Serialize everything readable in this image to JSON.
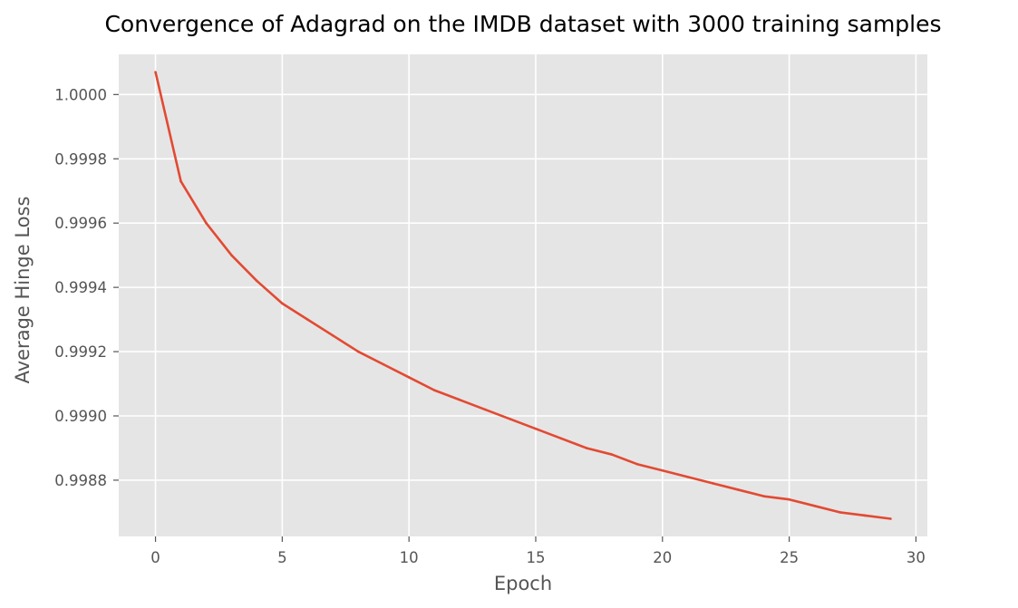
{
  "chart_data": {
    "type": "line",
    "title": "Convergence of Adagrad on the IMDB dataset with 3000 training samples",
    "xlabel": "Epoch",
    "ylabel": "Average Hinge Loss",
    "xlim": [
      -1.45,
      30.45
    ],
    "ylim": [
      0.998625,
      1.000125
    ],
    "grid": true,
    "style": "ggplot",
    "colors": {
      "plot_background": "#E5E5E5",
      "grid": "#FFFFFF",
      "tick_mark": "#555555",
      "series": "#E24A33"
    },
    "x_ticks": [
      {
        "value": 0,
        "label": "0"
      },
      {
        "value": 5,
        "label": "5"
      },
      {
        "value": 10,
        "label": "10"
      },
      {
        "value": 15,
        "label": "15"
      },
      {
        "value": 20,
        "label": "20"
      },
      {
        "value": 25,
        "label": "25"
      },
      {
        "value": 30,
        "label": "30"
      }
    ],
    "y_ticks": [
      {
        "value": 0.9988,
        "label": "0.9988"
      },
      {
        "value": 0.999,
        "label": "0.9990"
      },
      {
        "value": 0.9992,
        "label": "0.9992"
      },
      {
        "value": 0.9994,
        "label": "0.9994"
      },
      {
        "value": 0.9996,
        "label": "0.9996"
      },
      {
        "value": 0.9998,
        "label": "0.9998"
      },
      {
        "value": 1.0,
        "label": "1.0000"
      }
    ],
    "series": [
      {
        "x": [
          0,
          1,
          2,
          3,
          4,
          5,
          6,
          7,
          8,
          9,
          10,
          11,
          12,
          13,
          14,
          15,
          16,
          17,
          18,
          19,
          20,
          21,
          22,
          23,
          24,
          25,
          26,
          27,
          28,
          29
        ],
        "values": [
          1.00007,
          0.99973,
          0.9996,
          0.9995,
          0.99942,
          0.99935,
          0.9993,
          0.99925,
          0.9992,
          0.99916,
          0.99912,
          0.99908,
          0.99905,
          0.99902,
          0.99899,
          0.99896,
          0.99893,
          0.9989,
          0.99888,
          0.99885,
          0.99883,
          0.99881,
          0.99879,
          0.99877,
          0.99875,
          0.99874,
          0.99872,
          0.9987,
          0.99869,
          0.99868
        ]
      }
    ]
  }
}
